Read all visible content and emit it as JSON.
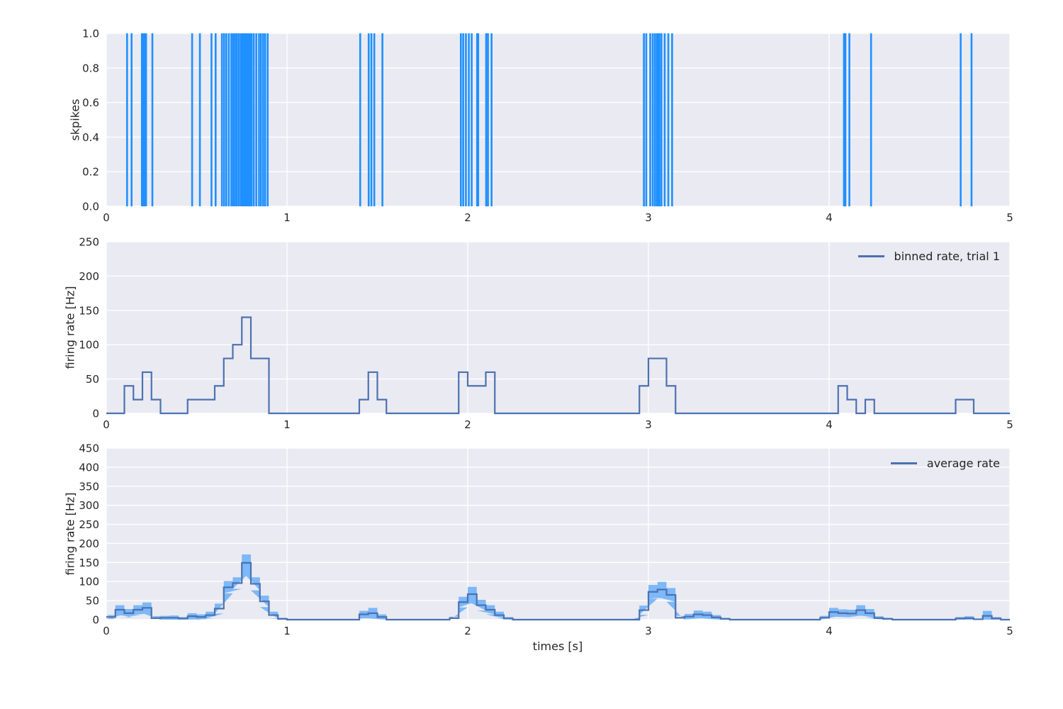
{
  "figure": {
    "xlabel": "times [s]",
    "x_tick_labels": [
      "0",
      "1",
      "2",
      "3",
      "4",
      "5"
    ],
    "colors": {
      "axes_bg": "#eaeaf2",
      "grid": "#ffffff",
      "tick_text": "#262626",
      "spike": "#1f90ff",
      "line": "#4c72b0",
      "band": "#7db8f8"
    }
  },
  "chart_data": [
    {
      "type": "event-raster",
      "ylabel": "skpikes",
      "xlim": [
        0,
        5
      ],
      "ylim": [
        0.0,
        1.0
      ],
      "x_ticks": [
        0,
        1,
        2,
        3,
        4,
        5
      ],
      "y_ticks": [
        0.0,
        0.2,
        0.4,
        0.6,
        0.8,
        1.0
      ],
      "y_tick_labels": [
        "0.0",
        "0.2",
        "0.4",
        "0.6",
        "0.8",
        "1.0"
      ],
      "events": [
        0.115,
        0.14,
        0.197,
        0.205,
        0.212,
        0.22,
        0.255,
        0.475,
        0.518,
        0.582,
        0.605,
        0.64,
        0.652,
        0.664,
        0.678,
        0.692,
        0.702,
        0.712,
        0.722,
        0.733,
        0.744,
        0.752,
        0.759,
        0.766,
        0.773,
        0.781,
        0.789,
        0.796,
        0.804,
        0.816,
        0.83,
        0.845,
        0.856,
        0.868,
        0.879,
        0.893,
        1.405,
        1.452,
        1.467,
        1.483,
        1.528,
        1.962,
        1.975,
        1.99,
        2.006,
        2.022,
        2.052,
        2.058,
        2.102,
        2.112,
        2.132,
        2.975,
        2.988,
        3.01,
        3.024,
        3.036,
        3.047,
        3.054,
        3.061,
        3.072,
        3.09,
        3.11,
        3.131,
        4.082,
        4.09,
        4.112,
        4.232,
        4.728,
        4.788
      ]
    },
    {
      "type": "step-line",
      "legend": "binned rate, trial 1",
      "ylabel": "firing rate [Hz]",
      "xlim": [
        0,
        5
      ],
      "ylim": [
        0,
        250
      ],
      "x_ticks": [
        0,
        1,
        2,
        3,
        4,
        5
      ],
      "y_ticks": [
        0,
        50,
        100,
        150,
        200,
        250
      ],
      "y_tick_labels": [
        "0",
        "50",
        "100",
        "150",
        "200",
        "250"
      ],
      "bin_width": 0.05,
      "values": [
        0,
        0,
        40,
        20,
        60,
        20,
        0,
        0,
        0,
        20,
        20,
        20,
        40,
        80,
        100,
        140,
        80,
        80,
        0,
        0,
        0,
        0,
        0,
        0,
        0,
        0,
        0,
        0,
        20,
        60,
        20,
        0,
        0,
        0,
        0,
        0,
        0,
        0,
        0,
        60,
        40,
        40,
        60,
        0,
        0,
        0,
        0,
        0,
        0,
        0,
        0,
        0,
        0,
        0,
        0,
        0,
        0,
        0,
        0,
        40,
        80,
        80,
        40,
        0,
        0,
        0,
        0,
        0,
        0,
        0,
        0,
        0,
        0,
        0,
        0,
        0,
        0,
        0,
        0,
        0,
        0,
        40,
        20,
        0,
        20,
        0,
        0,
        0,
        0,
        0,
        0,
        0,
        0,
        0,
        20,
        20,
        0,
        0,
        0,
        0
      ]
    },
    {
      "type": "step-band",
      "legend": "average rate",
      "ylabel": "firing rate [Hz]",
      "xlim": [
        0,
        5
      ],
      "ylim": [
        0,
        450
      ],
      "x_ticks": [
        0,
        1,
        2,
        3,
        4,
        5
      ],
      "y_ticks": [
        0,
        50,
        100,
        150,
        200,
        250,
        300,
        350,
        400,
        450
      ],
      "y_tick_labels": [
        "0",
        "50",
        "100",
        "150",
        "200",
        "250",
        "300",
        "350",
        "400",
        "450"
      ],
      "bin_width": 0.05,
      "mean": [
        7,
        26,
        17,
        26,
        31,
        4,
        5,
        5,
        3,
        9,
        7,
        12,
        29,
        85,
        96,
        149,
        94,
        48,
        12,
        2,
        0,
        0,
        0,
        0,
        0,
        0,
        0,
        0,
        14,
        17,
        7,
        0,
        0,
        0,
        0,
        0,
        0,
        0,
        4,
        46,
        67,
        38,
        26,
        12,
        3,
        0,
        0,
        0,
        0,
        0,
        0,
        0,
        0,
        0,
        0,
        0,
        0,
        0,
        0,
        25,
        73,
        79,
        65,
        5,
        8,
        14,
        12,
        6,
        2,
        0,
        0,
        0,
        0,
        0,
        0,
        0,
        0,
        0,
        0,
        5,
        20,
        17,
        16,
        25,
        17,
        4,
        2,
        0,
        0,
        0,
        0,
        0,
        0,
        0,
        3,
        4,
        1,
        10,
        3,
        0
      ],
      "err": [
        5,
        12,
        11,
        12,
        14,
        5,
        5,
        6,
        4,
        8,
        7,
        9,
        13,
        16,
        15,
        22,
        17,
        15,
        9,
        3,
        0,
        0,
        0,
        0,
        0,
        0,
        0,
        0,
        9,
        14,
        7,
        0,
        0,
        0,
        0,
        0,
        0,
        0,
        4,
        14,
        19,
        14,
        12,
        9,
        4,
        0,
        0,
        0,
        0,
        0,
        0,
        0,
        0,
        0,
        0,
        0,
        0,
        0,
        0,
        12,
        18,
        20,
        18,
        5,
        7,
        10,
        9,
        6,
        3,
        0,
        0,
        0,
        0,
        0,
        0,
        0,
        0,
        0,
        0,
        5,
        11,
        10,
        10,
        13,
        11,
        5,
        3,
        0,
        0,
        0,
        0,
        0,
        0,
        0,
        4,
        5,
        1,
        13,
        4,
        0
      ]
    }
  ]
}
